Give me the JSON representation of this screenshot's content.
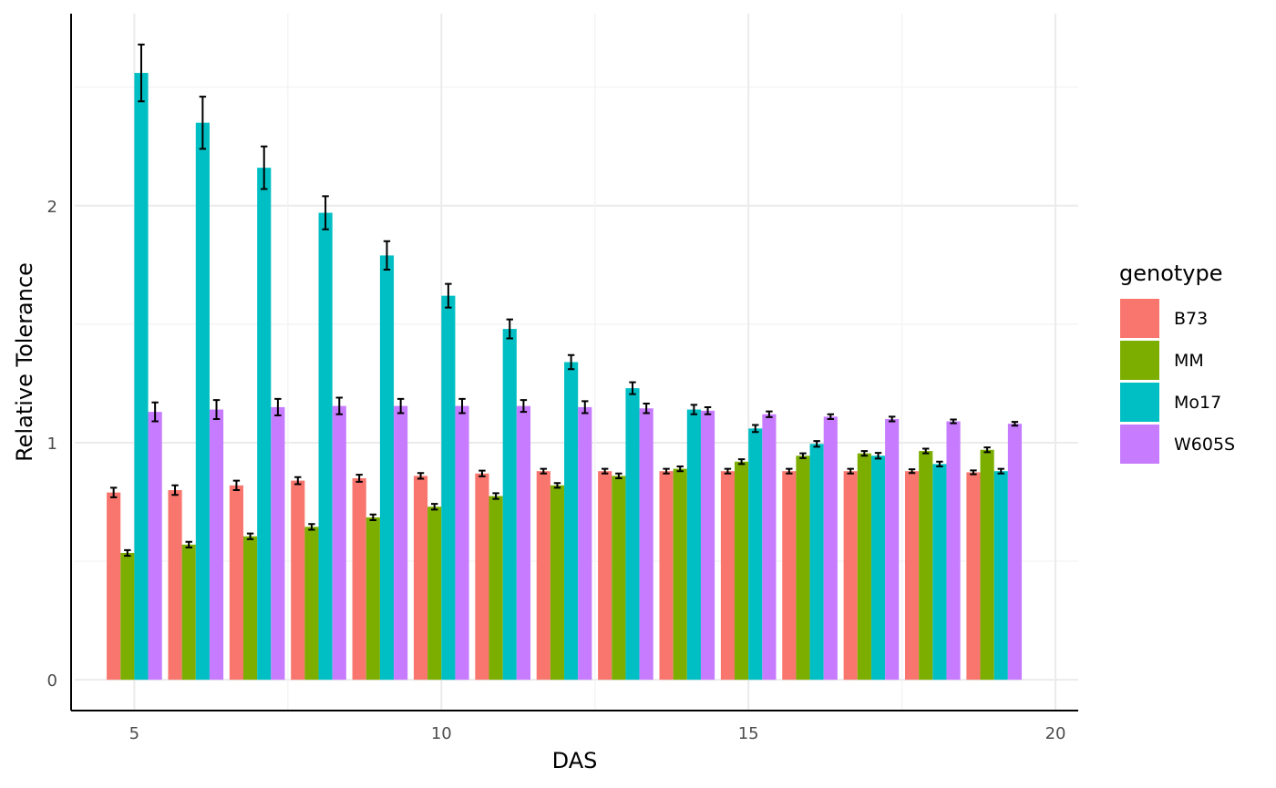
{
  "chart_data": {
    "type": "bar",
    "xlabel": "DAS",
    "ylabel": "Relative Tolerance",
    "x": [
      5,
      6,
      7,
      8,
      9,
      10,
      11,
      12,
      13,
      14,
      15,
      16,
      17,
      18,
      19
    ],
    "xlim": [
      3.97,
      20.37
    ],
    "ylim": [
      -0.13,
      2.81
    ],
    "x_ticks": [
      5,
      10,
      15,
      20
    ],
    "y_ticks": [
      0,
      1,
      2
    ],
    "grid": true,
    "legend": {
      "title": "genotype",
      "position": "right"
    },
    "series": [
      {
        "name": "B73",
        "color": "#F8766D",
        "values": [
          0.79,
          0.8,
          0.82,
          0.84,
          0.85,
          0.86,
          0.87,
          0.88,
          0.88,
          0.88,
          0.88,
          0.88,
          0.88,
          0.88,
          0.875
        ],
        "errors": [
          0.02,
          0.02,
          0.02,
          0.015,
          0.015,
          0.012,
          0.012,
          0.01,
          0.01,
          0.01,
          0.01,
          0.01,
          0.01,
          0.008,
          0.008
        ]
      },
      {
        "name": "MM",
        "color": "#7CAE00",
        "values": [
          0.535,
          0.57,
          0.605,
          0.645,
          0.685,
          0.73,
          0.775,
          0.82,
          0.86,
          0.89,
          0.92,
          0.945,
          0.955,
          0.965,
          0.97
        ],
        "errors": [
          0.012,
          0.012,
          0.012,
          0.012,
          0.012,
          0.012,
          0.012,
          0.01,
          0.01,
          0.01,
          0.01,
          0.01,
          0.01,
          0.01,
          0.01
        ]
      },
      {
        "name": "Mo17",
        "color": "#00BFC4",
        "values": [
          2.56,
          2.35,
          2.16,
          1.97,
          1.79,
          1.62,
          1.48,
          1.34,
          1.23,
          1.14,
          1.06,
          0.995,
          0.945,
          0.91,
          0.88
        ],
        "errors": [
          0.12,
          0.11,
          0.09,
          0.07,
          0.06,
          0.05,
          0.04,
          0.03,
          0.025,
          0.02,
          0.015,
          0.012,
          0.012,
          0.01,
          0.01
        ]
      },
      {
        "name": "W605S",
        "color": "#C77CFF",
        "values": [
          1.13,
          1.14,
          1.15,
          1.155,
          1.155,
          1.155,
          1.155,
          1.15,
          1.145,
          1.135,
          1.12,
          1.11,
          1.1,
          1.09,
          1.08
        ],
        "errors": [
          0.04,
          0.04,
          0.035,
          0.035,
          0.03,
          0.03,
          0.025,
          0.025,
          0.02,
          0.015,
          0.012,
          0.01,
          0.01,
          0.008,
          0.008
        ]
      }
    ]
  }
}
